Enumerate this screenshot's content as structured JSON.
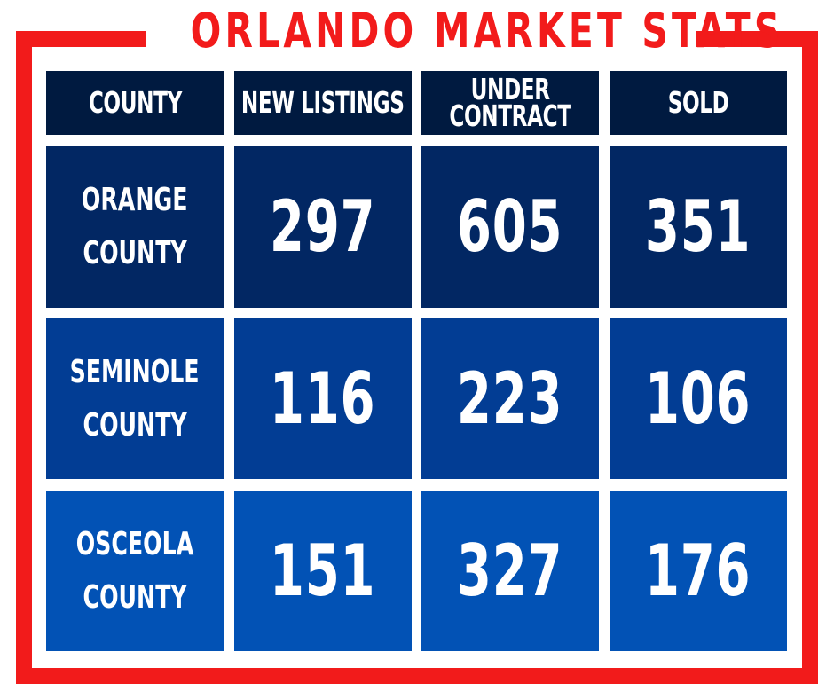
{
  "title": "ORLANDO MARKET STATS",
  "headers": [
    "COUNTY",
    "NEW LISTINGS",
    "UNDER CONTRACT",
    "SOLD"
  ],
  "header_under_contract_lines": [
    "UNDER",
    "CONTRACT"
  ],
  "rows": [
    {
      "county_line1": "ORANGE",
      "county_line2": "COUNTY",
      "new_listings": "297",
      "under_contract": "605",
      "sold": "351"
    },
    {
      "county_line1": "SEMINOLE",
      "county_line2": "COUNTY",
      "new_listings": "116",
      "under_contract": "223",
      "sold": "106"
    },
    {
      "county_line1": "OSCEOLA",
      "county_line2": "COUNTY",
      "new_listings": "151",
      "under_contract": "327",
      "sold": "176"
    }
  ],
  "colors": {
    "frame_red": "#f21b1b",
    "header_navy": "#001a40",
    "row1": "#022763",
    "row2": "#023d94",
    "row3": "#0252b5",
    "text": "#ffffff"
  }
}
